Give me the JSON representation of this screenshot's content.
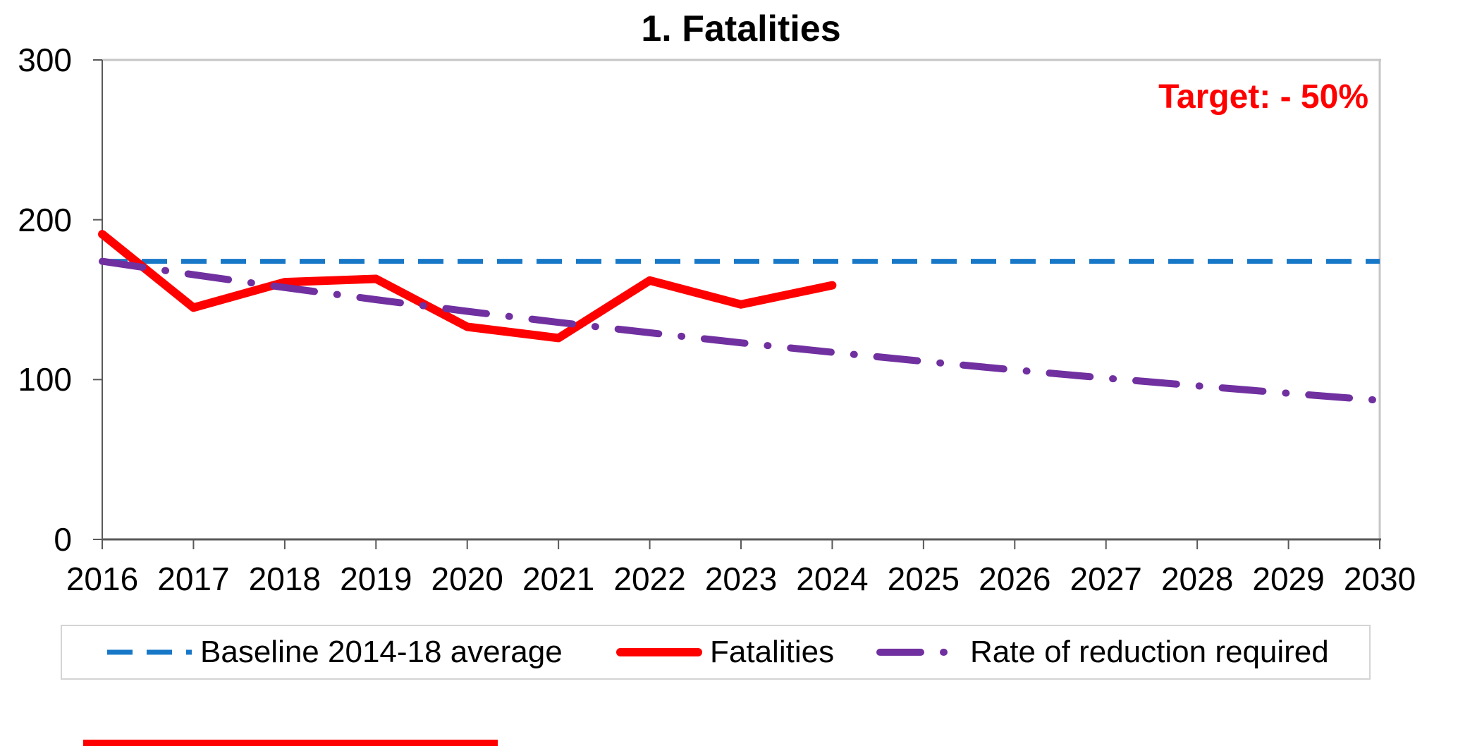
{
  "title": "1. Fatalities",
  "target_annotation": "Target: - 50%",
  "legend": {
    "items": [
      {
        "label": "Baseline 2014-18 average",
        "key": "baseline"
      },
      {
        "label": "Fatalities",
        "key": "fatalities"
      },
      {
        "label": "Rate of reduction required",
        "key": "required"
      }
    ]
  },
  "colors": {
    "baseline": "#1878c8",
    "fatalities": "#ff0000",
    "required": "#7030a0",
    "target_text": "#ff0000",
    "axis_line": "#595959",
    "tick": "#595959",
    "plot_border": "#c6c6c6",
    "legend_border": "#d4d4d4",
    "red_strip": "#ff0000"
  },
  "chart_data": {
    "type": "line",
    "title": "1. Fatalities",
    "annotation": "Target: - 50%",
    "x": [
      2016,
      2017,
      2018,
      2019,
      2020,
      2021,
      2022,
      2023,
      2024,
      2025,
      2026,
      2027,
      2028,
      2029,
      2030
    ],
    "xlabel": "",
    "ylabel": "",
    "ylim": [
      0,
      300
    ],
    "yticks": [
      0,
      100,
      200,
      300
    ],
    "grid": false,
    "legend_position": "bottom",
    "series": [
      {
        "name": "Baseline 2014-18 average",
        "key": "baseline",
        "style": "dashed",
        "values": [
          174,
          174,
          174,
          174,
          174,
          174,
          174,
          174,
          174,
          174,
          174,
          174,
          174,
          174,
          174
        ]
      },
      {
        "name": "Fatalities",
        "key": "fatalities",
        "style": "solid",
        "values": [
          191,
          145,
          161,
          163,
          133,
          126,
          162,
          147,
          159
        ]
      },
      {
        "name": "Rate of reduction required",
        "key": "required",
        "style": "dashdot",
        "values": [
          174,
          165.6,
          157.6,
          150.0,
          142.7,
          135.8,
          129.3,
          123.0,
          117.1,
          111.4,
          106.0,
          100.9,
          96.1,
          91.4,
          87.0
        ]
      }
    ]
  }
}
